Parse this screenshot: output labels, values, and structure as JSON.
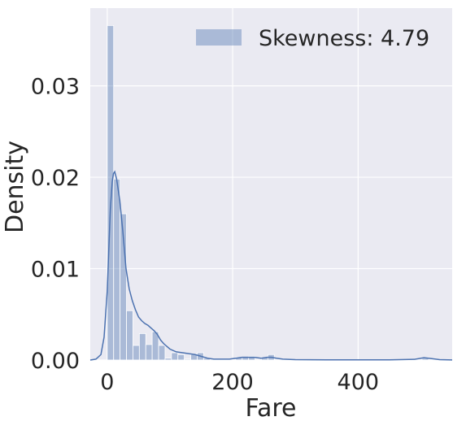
{
  "chart_data": {
    "type": "histogram",
    "xlabel": "Fare",
    "ylabel": "Density",
    "xlim": [
      -27,
      550
    ],
    "ylim": [
      0,
      0.0385
    ],
    "x_ticks": [
      0,
      200,
      400
    ],
    "x_tick_labels": [
      "0",
      "200",
      "400"
    ],
    "y_ticks": [
      0.0,
      0.01,
      0.02,
      0.03
    ],
    "y_tick_labels": [
      "0.00",
      "0.01",
      "0.02",
      "0.03"
    ],
    "grid": true,
    "legend": {
      "placement": "top-right",
      "entries": [
        "Skewness: 4.79"
      ]
    },
    "bar_color": "#4c72b0",
    "bar_opacity": 0.4,
    "line_color": "#4c72b0",
    "background_color": "#eaeaf2",
    "bin_width": 10.25,
    "bins": [
      {
        "x0": 0.0,
        "x1": 10.25,
        "density": 0.0366
      },
      {
        "x0": 10.25,
        "x1": 20.49,
        "density": 0.0198
      },
      {
        "x0": 20.49,
        "x1": 30.74,
        "density": 0.016
      },
      {
        "x0": 30.74,
        "x1": 40.99,
        "density": 0.0054
      },
      {
        "x0": 40.99,
        "x1": 51.23,
        "density": 0.0016
      },
      {
        "x0": 51.23,
        "x1": 61.48,
        "density": 0.0029
      },
      {
        "x0": 61.48,
        "x1": 71.72,
        "density": 0.0017
      },
      {
        "x0": 71.72,
        "x1": 81.97,
        "density": 0.0031
      },
      {
        "x0": 81.97,
        "x1": 92.22,
        "density": 0.0016
      },
      {
        "x0": 92.22,
        "x1": 102.46,
        "density": 0.0002
      },
      {
        "x0": 102.46,
        "x1": 112.71,
        "density": 0.0008
      },
      {
        "x0": 112.71,
        "x1": 122.96,
        "density": 0.0006
      },
      {
        "x0": 122.96,
        "x1": 133.2,
        "density": 0.0001
      },
      {
        "x0": 133.2,
        "x1": 143.45,
        "density": 0.0006
      },
      {
        "x0": 143.45,
        "x1": 153.69,
        "density": 0.0008
      },
      {
        "x0": 153.69,
        "x1": 163.94,
        "density": 0.0002
      },
      {
        "x0": 204.93,
        "x1": 215.17,
        "density": 0.0003
      },
      {
        "x0": 215.17,
        "x1": 225.42,
        "density": 0.0003
      },
      {
        "x0": 225.42,
        "x1": 235.67,
        "density": 0.0004
      },
      {
        "x0": 245.91,
        "x1": 256.16,
        "density": 0.0003
      },
      {
        "x0": 256.16,
        "x1": 266.41,
        "density": 0.0006
      },
      {
        "x0": 502.0,
        "x1": 512.33,
        "density": 0.0002
      }
    ],
    "kde": [
      [
        -27,
        0.0
      ],
      [
        -18,
        0.0001
      ],
      [
        -10,
        0.0006
      ],
      [
        -5,
        0.0025
      ],
      [
        0,
        0.0075
      ],
      [
        5,
        0.0165
      ],
      [
        8,
        0.0195
      ],
      [
        10,
        0.0204
      ],
      [
        12,
        0.0206
      ],
      [
        15,
        0.0198
      ],
      [
        20,
        0.0175
      ],
      [
        25,
        0.014
      ],
      [
        30,
        0.01
      ],
      [
        35,
        0.0078
      ],
      [
        40,
        0.0065
      ],
      [
        45,
        0.0055
      ],
      [
        50,
        0.0047
      ],
      [
        55,
        0.0043
      ],
      [
        60,
        0.004
      ],
      [
        65,
        0.0038
      ],
      [
        70,
        0.0035
      ],
      [
        75,
        0.0032
      ],
      [
        80,
        0.0028
      ],
      [
        85,
        0.0022
      ],
      [
        90,
        0.0018
      ],
      [
        100,
        0.0012
      ],
      [
        110,
        0.0009
      ],
      [
        120,
        0.0008
      ],
      [
        130,
        0.0007
      ],
      [
        140,
        0.0006
      ],
      [
        150,
        0.0004
      ],
      [
        160,
        0.0002
      ],
      [
        170,
        0.0001
      ],
      [
        180,
        0.0001
      ],
      [
        195,
        0.0001
      ],
      [
        205,
        0.0002
      ],
      [
        215,
        0.0003
      ],
      [
        225,
        0.0003
      ],
      [
        235,
        0.0003
      ],
      [
        245,
        0.0002
      ],
      [
        255,
        0.0003
      ],
      [
        262,
        0.0003
      ],
      [
        270,
        0.0002
      ],
      [
        280,
        0.0001
      ],
      [
        300,
        5e-05
      ],
      [
        350,
        2e-05
      ],
      [
        450,
        2e-05
      ],
      [
        490,
        8e-05
      ],
      [
        505,
        0.00025
      ],
      [
        515,
        0.00018
      ],
      [
        530,
        5e-05
      ],
      [
        550,
        1e-05
      ]
    ]
  }
}
